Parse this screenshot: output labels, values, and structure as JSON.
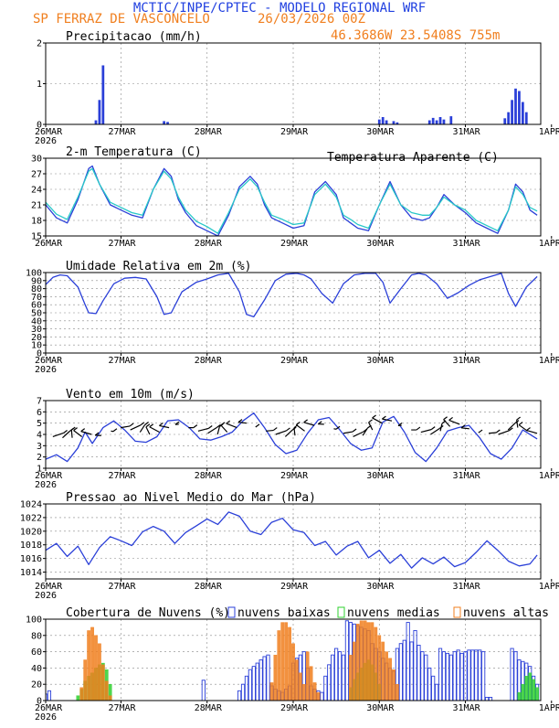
{
  "header": {
    "title": "MCTIC/INPE/CPTEC - MODELO REGIONAL WRF",
    "station": "SP FERRAZ DE VASCONCELO",
    "run": "26/03/2026 00Z",
    "location": "46.3686W 23.5408S 755m"
  },
  "colors": {
    "title_blue": "#1f3fe0",
    "orange": "#f07f1f",
    "cyan": "#28c8c8",
    "series_blue": "#2a3fd8",
    "green": "#2fd02f"
  },
  "x_axis": {
    "labels": [
      "26MAR",
      "27MAR",
      "28MAR",
      "29MAR",
      "30MAR",
      "31MAR",
      "1APR"
    ],
    "year": "2026"
  },
  "chart_data": [
    {
      "type": "bar",
      "title": "Precipitacao (mm/h)",
      "ylim": [
        0,
        2
      ],
      "yticks": [
        "0",
        "1",
        "2"
      ],
      "x_hours": [
        14,
        15,
        16,
        33,
        34,
        93,
        94,
        95,
        97,
        98,
        107,
        108,
        109,
        110,
        111,
        113,
        128,
        129,
        130,
        131,
        132,
        133,
        134
      ],
      "values": [
        0.1,
        0.6,
        1.45,
        0.08,
        0.06,
        0.12,
        0.18,
        0.1,
        0.08,
        0.05,
        0.1,
        0.16,
        0.1,
        0.18,
        0.12,
        0.2,
        0.15,
        0.3,
        0.6,
        0.88,
        0.82,
        0.55,
        0.3
      ]
    },
    {
      "type": "line",
      "title": "2-m Temperatura (C)",
      "legend": "Temperatura Aparente (C)",
      "ylim": [
        15,
        30
      ],
      "yticks": [
        "15",
        "18",
        "21",
        "24",
        "27",
        "30"
      ],
      "x": [
        0,
        3,
        6,
        9,
        12,
        13,
        15,
        18,
        21,
        24,
        27,
        30,
        33,
        35,
        37,
        39,
        42,
        45,
        48,
        51,
        54,
        57,
        59,
        61,
        63,
        66,
        69,
        72,
        75,
        78,
        81,
        83,
        85,
        87,
        90,
        93,
        96,
        99,
        102,
        105,
        107,
        109,
        111,
        114,
        117,
        120,
        123,
        126,
        129,
        131,
        133,
        135,
        137
      ],
      "series": [
        {
          "name": "2-m Temperatura",
          "values": [
            21,
            18.5,
            17.5,
            22,
            28,
            28.5,
            25,
            21,
            20,
            19,
            18.5,
            24,
            28,
            26.5,
            22,
            19.5,
            17,
            16,
            15,
            19,
            24.5,
            26.5,
            25,
            21,
            18.5,
            17.5,
            16.5,
            17,
            23.5,
            25.5,
            23,
            18.5,
            17.5,
            16.5,
            16,
            21,
            25.5,
            21,
            18.5,
            18,
            18.5,
            20.5,
            23,
            21,
            19.5,
            17.5,
            16.5,
            15.5,
            20,
            25,
            23.5,
            20,
            19
          ]
        },
        {
          "name": "Temperatura Aparente",
          "values": [
            21.5,
            19.2,
            18.2,
            22.5,
            27.5,
            28,
            25,
            21.5,
            20.5,
            19.5,
            19,
            24,
            27.5,
            26,
            22.5,
            20,
            17.8,
            16.8,
            15.5,
            19.5,
            24,
            26,
            24.5,
            21.5,
            19,
            18.2,
            17.2,
            17.5,
            23,
            25,
            22.5,
            19,
            18.2,
            17.2,
            16.5,
            21,
            25,
            21,
            19.5,
            19,
            19,
            20.5,
            22.5,
            21,
            20,
            18,
            17,
            16,
            20,
            24.5,
            23,
            20.5,
            19.8
          ]
        }
      ]
    },
    {
      "type": "line",
      "title": "Umidade Relativa em 2m (%)",
      "ylim": [
        0,
        100
      ],
      "yticks": [
        "0",
        "10",
        "20",
        "30",
        "40",
        "50",
        "60",
        "70",
        "80",
        "90",
        "100"
      ],
      "x": [
        0,
        2,
        4,
        6,
        9,
        11,
        12,
        14,
        16,
        19,
        22,
        25,
        28,
        31,
        33,
        35,
        38,
        42,
        45,
        48,
        51,
        54,
        56,
        58,
        61,
        64,
        67,
        70,
        72,
        74,
        77,
        80,
        83,
        86,
        89,
        92,
        94,
        96,
        99,
        102,
        104,
        106,
        109,
        112,
        115,
        118,
        121,
        124,
        127,
        129,
        131,
        134,
        137
      ],
      "series": [
        {
          "name": "Umidade Relativa",
          "values": [
            85,
            94,
            97,
            96,
            82,
            60,
            50,
            49,
            65,
            86,
            93,
            94,
            92,
            70,
            48,
            50,
            76,
            88,
            92,
            97,
            99,
            76,
            48,
            45,
            66,
            90,
            98,
            99,
            97,
            92,
            74,
            62,
            86,
            97,
            99,
            99,
            88,
            62,
            80,
            97,
            99,
            97,
            86,
            68,
            75,
            84,
            91,
            95,
            99,
            74,
            58,
            82,
            95
          ]
        }
      ]
    },
    {
      "type": "line",
      "title": "Vento em 10m (m/s)",
      "ylim": [
        1,
        7
      ],
      "yticks": [
        "1",
        "2",
        "3",
        "4",
        "5",
        "6",
        "7"
      ],
      "x": [
        0,
        3,
        6,
        9,
        11,
        13,
        16,
        19,
        22,
        25,
        28,
        31,
        34,
        37,
        40,
        43,
        46,
        49,
        52,
        55,
        58,
        61,
        64,
        67,
        70,
        73,
        76,
        79,
        82,
        85,
        88,
        91,
        94,
        97,
        100,
        103,
        106,
        109,
        112,
        115,
        118,
        121,
        124,
        127,
        130,
        133,
        137
      ],
      "series": [
        {
          "name": "Vento",
          "values": [
            1.8,
            2.2,
            1.6,
            2.8,
            4.2,
            3.2,
            4.6,
            5.2,
            4.4,
            3.4,
            3.3,
            3.8,
            5.2,
            5.3,
            4.6,
            3.6,
            3.5,
            3.8,
            4.2,
            5.2,
            5.9,
            4.6,
            3.1,
            2.3,
            2.6,
            4.1,
            5.3,
            5.5,
            4.4,
            3.2,
            2.6,
            2.8,
            5.1,
            5.6,
            4.2,
            2.4,
            1.6,
            2.8,
            4.3,
            4.6,
            4.8,
            3.7,
            2.3,
            1.8,
            2.8,
            4.4,
            3.6
          ]
        }
      ],
      "barb_speeds": [
        3.8,
        3.7,
        3.7,
        3.8,
        4.0,
        3.9,
        4.3,
        4.6,
        4.4,
        4.2,
        4.0,
        4.2,
        4.6,
        4.9,
        4.6,
        4.3,
        4.1,
        4.0,
        4.2,
        4.6,
        5.0,
        4.7,
        4.3,
        4.0,
        3.8,
        3.9,
        4.3,
        4.8,
        4.9,
        4.5,
        4.1,
        3.8,
        3.9,
        4.4,
        5.0,
        5.2,
        4.8,
        4.4,
        4.2,
        4.0,
        4.3,
        4.7,
        4.9,
        4.5,
        4.2,
        4.1,
        4.0,
        4.4,
        4.6,
        4.3,
        4.1
      ]
    },
    {
      "type": "line",
      "title": "Pressao ao Nivel Medio do Mar (hPa)",
      "ylim": [
        1013,
        1024
      ],
      "yticks": [
        "1014",
        "1016",
        "1018",
        "1020",
        "1022",
        "1024"
      ],
      "x": [
        0,
        3,
        6,
        9,
        12,
        15,
        18,
        21,
        24,
        27,
        30,
        33,
        36,
        39,
        42,
        45,
        48,
        51,
        54,
        57,
        60,
        63,
        66,
        69,
        72,
        75,
        78,
        81,
        84,
        87,
        90,
        93,
        96,
        99,
        102,
        105,
        108,
        111,
        114,
        117,
        120,
        123,
        126,
        129,
        132,
        135,
        137
      ],
      "series": [
        {
          "name": "Pressao",
          "values": [
            1017.2,
            1018.2,
            1016.3,
            1017.8,
            1015.1,
            1017.6,
            1019.2,
            1018.6,
            1017.9,
            1019.9,
            1020.7,
            1020,
            1018.2,
            1019.8,
            1020.8,
            1021.8,
            1021,
            1022.8,
            1022.2,
            1020,
            1019.5,
            1021.3,
            1021.9,
            1020.2,
            1019.8,
            1017.9,
            1018.5,
            1016.5,
            1017.8,
            1018.5,
            1016.1,
            1017.2,
            1015.3,
            1016.6,
            1014.6,
            1016.1,
            1015.2,
            1016.2,
            1014.8,
            1015.4,
            1016.9,
            1018.6,
            1017.2,
            1015.6,
            1014.9,
            1015.2,
            1016.5
          ]
        }
      ]
    },
    {
      "type": "bar",
      "title": "Cobertura de Nuvens (%)",
      "legend": [
        "nuvens baixas",
        "nuvens medias",
        "nuvens altas"
      ],
      "ylim": [
        0,
        100
      ],
      "yticks": [
        "0",
        "20",
        "40",
        "60",
        "80",
        "100"
      ],
      "series": [
        {
          "name": "nuvens baixas",
          "x_hours": [
            0,
            1,
            44,
            54,
            55,
            56,
            57,
            58,
            59,
            60,
            61,
            62,
            63,
            64,
            65,
            66,
            67,
            68,
            69,
            70,
            71,
            72,
            73,
            74,
            75,
            76,
            77,
            78,
            79,
            80,
            81,
            82,
            83,
            84,
            85,
            86,
            87,
            88,
            89,
            90,
            91,
            92,
            93,
            94,
            95,
            96,
            97,
            98,
            99,
            100,
            101,
            102,
            103,
            104,
            105,
            106,
            107,
            108,
            109,
            110,
            111,
            112,
            113,
            114,
            115,
            116,
            117,
            118,
            119,
            120,
            121,
            122,
            123,
            124,
            130,
            131,
            132,
            133,
            134,
            135,
            136,
            137
          ],
          "values": [
            8,
            12,
            25,
            12,
            20,
            30,
            38,
            42,
            46,
            50,
            54,
            56,
            18,
            14,
            12,
            10,
            14,
            18,
            46,
            52,
            56,
            60,
            40,
            18,
            14,
            12,
            10,
            30,
            44,
            56,
            64,
            60,
            56,
            98,
            96,
            94,
            92,
            90,
            88,
            86,
            70,
            64,
            60,
            52,
            46,
            40,
            36,
            64,
            70,
            74,
            96,
            72,
            86,
            68,
            60,
            56,
            40,
            30,
            20,
            64,
            60,
            58,
            56,
            60,
            62,
            58,
            60,
            62,
            62,
            62,
            62,
            60,
            4,
            4,
            64,
            60,
            50,
            48,
            46,
            42,
            30,
            20
          ]
        },
        {
          "name": "nuvens medias",
          "x_hours": [
            9,
            10,
            11,
            12,
            13,
            14,
            15,
            16,
            17,
            18,
            85,
            86,
            87,
            88,
            89,
            90,
            91,
            92,
            93,
            132,
            133,
            134,
            135,
            136,
            137
          ],
          "values": [
            6,
            14,
            24,
            30,
            34,
            40,
            44,
            46,
            38,
            20,
            16,
            26,
            34,
            40,
            46,
            50,
            44,
            34,
            20,
            10,
            20,
            30,
            34,
            26,
            16
          ]
        },
        {
          "name": "nuvens altas",
          "x_hours": [
            10,
            11,
            12,
            13,
            14,
            15,
            16,
            17,
            18,
            63,
            64,
            65,
            66,
            67,
            68,
            69,
            70,
            71,
            72,
            73,
            74,
            75,
            76,
            85,
            86,
            87,
            88,
            89,
            90,
            91,
            92,
            93,
            94,
            95,
            96,
            97,
            98
          ],
          "values": [
            16,
            50,
            86,
            90,
            80,
            70,
            44,
            24,
            6,
            22,
            56,
            86,
            96,
            96,
            90,
            70,
            50,
            34,
            20,
            60,
            42,
            22,
            10,
            56,
            72,
            94,
            98,
            98,
            96,
            96,
            90,
            80,
            72,
            60,
            52,
            38,
            20
          ]
        }
      ]
    }
  ]
}
